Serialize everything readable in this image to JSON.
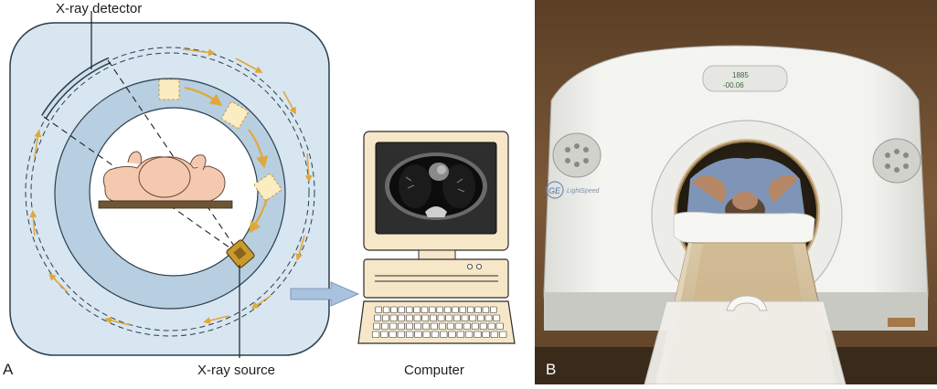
{
  "panel_a": {
    "letter": "A",
    "labels": {
      "detector": "X-ray detector",
      "source": "X-ray source",
      "computer": "Computer"
    }
  },
  "panel_b": {
    "letter": "B",
    "brand_logo": "GE",
    "model_name": "LightSpeed",
    "display_line_1": "1885",
    "display_line_2": "-00.06"
  },
  "colors": {
    "gantry_fill": "#d7e6f1",
    "gantry_stroke": "#2c3e4c",
    "ring_fill": "#b7cfe0",
    "arrow_gold": "#e0a83a",
    "skin": "#f4c9b0",
    "table_brown": "#6e5635",
    "monitor_beige": "#f6e7c8",
    "data_arrow": "#a9c2e0"
  }
}
